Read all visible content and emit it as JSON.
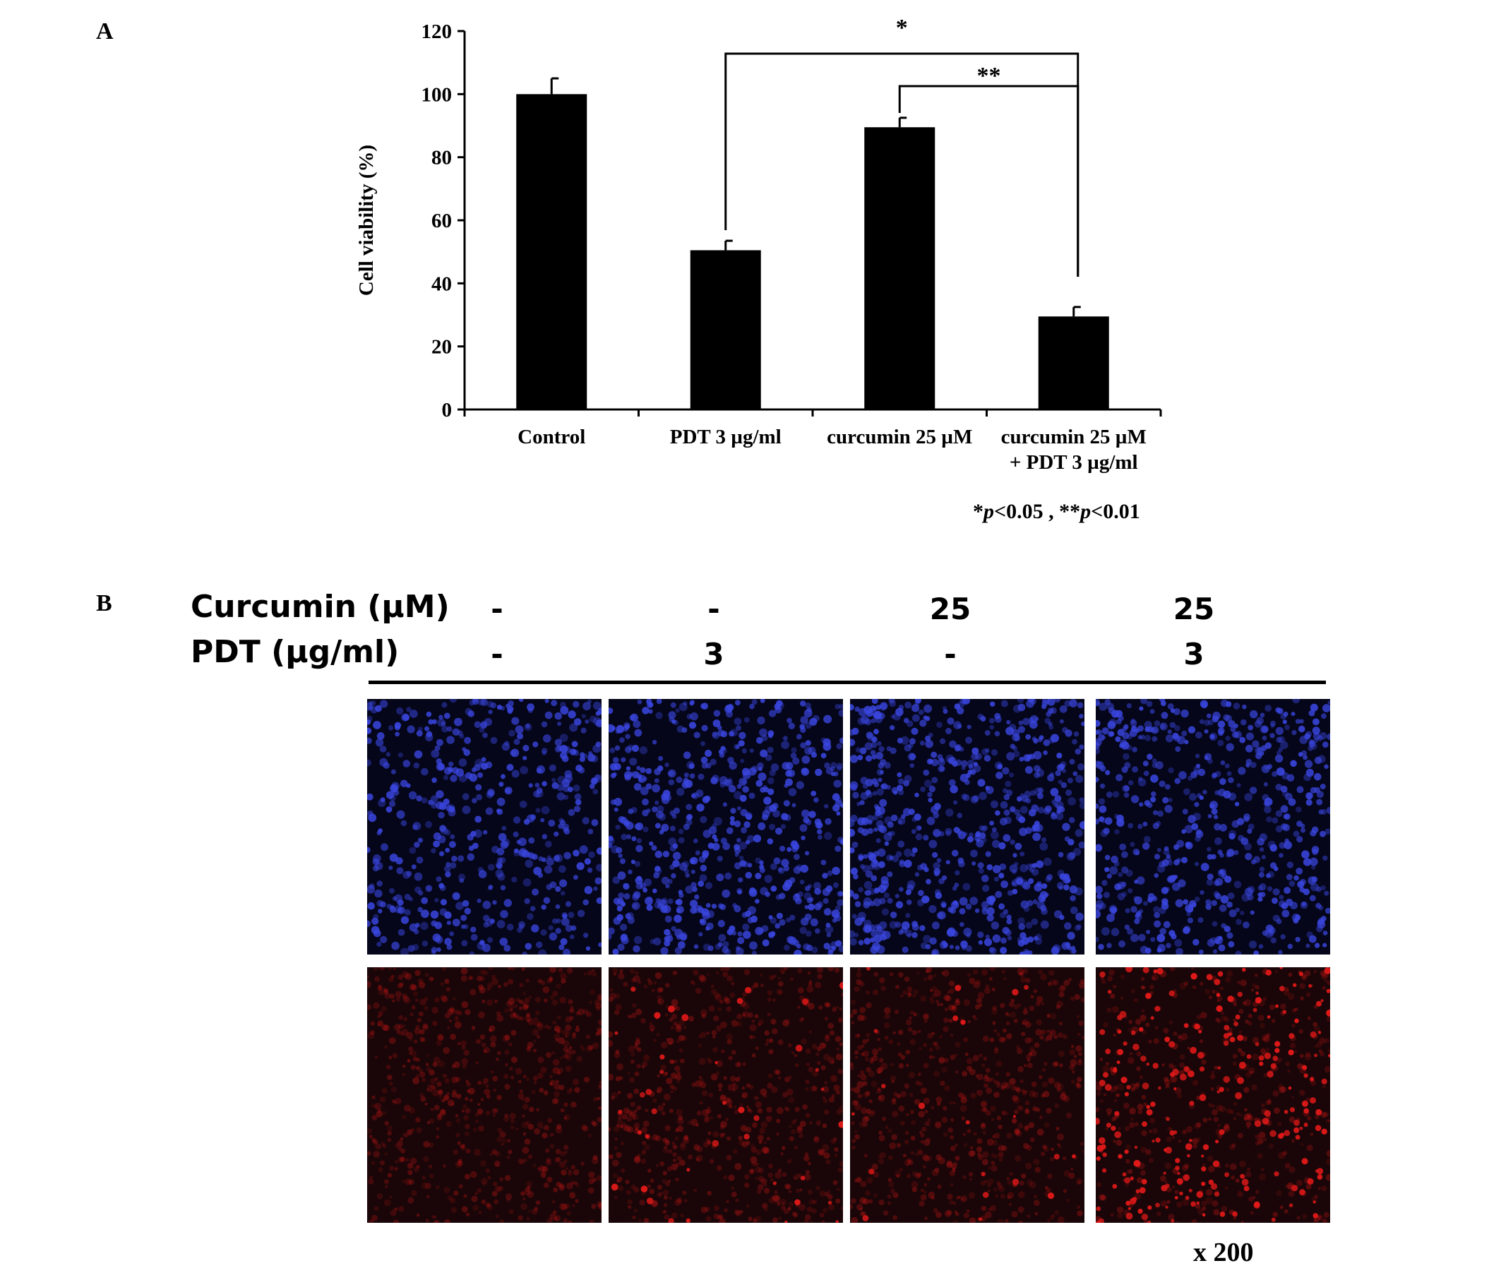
{
  "panels": {
    "a": "A",
    "b": "B"
  },
  "chart_data": {
    "type": "bar",
    "categories": [
      "Control",
      "PDT 3 µg/ml",
      "curcumin 25 µM",
      "curcumin 25 µM\n+ PDT 3 µg/ml"
    ],
    "category_lines": [
      [
        "Control"
      ],
      [
        "PDT 3 µg/ml"
      ],
      [
        "curcumin 25 µM"
      ],
      [
        "curcumin 25 µM",
        "+ PDT 3 µg/ml"
      ]
    ],
    "values": [
      100,
      50.5,
      89.5,
      29.5
    ],
    "errors": [
      5,
      3,
      3,
      3
    ],
    "ylabel": "Cell viability (%)",
    "ylim": [
      0,
      120
    ],
    "yticks": [
      0,
      20,
      40,
      60,
      80,
      100,
      120
    ],
    "color": "#000000",
    "significance": [
      {
        "from": 1,
        "to": 3,
        "label": "*"
      },
      {
        "from": 2,
        "to": 3,
        "label": "**"
      }
    ],
    "note": {
      "s1": "*",
      "p1": "p",
      "v1": "<0.05 , ",
      "s2": "**",
      "p2": "p",
      "v2": "<0.01"
    }
  },
  "panel_b": {
    "row1_label": "Curcumin (µM)",
    "row2_label": "PDT (µg/ml)",
    "row1_values": [
      "-",
      "-",
      "25",
      "25"
    ],
    "row2_values": [
      "-",
      "3",
      "-",
      "3"
    ],
    "magnification": "x 200",
    "stain_colors": {
      "nuclear": "#3a46e0",
      "background_blue": "#05061a",
      "red": "#e01818",
      "background_red": "#1a0608"
    }
  }
}
